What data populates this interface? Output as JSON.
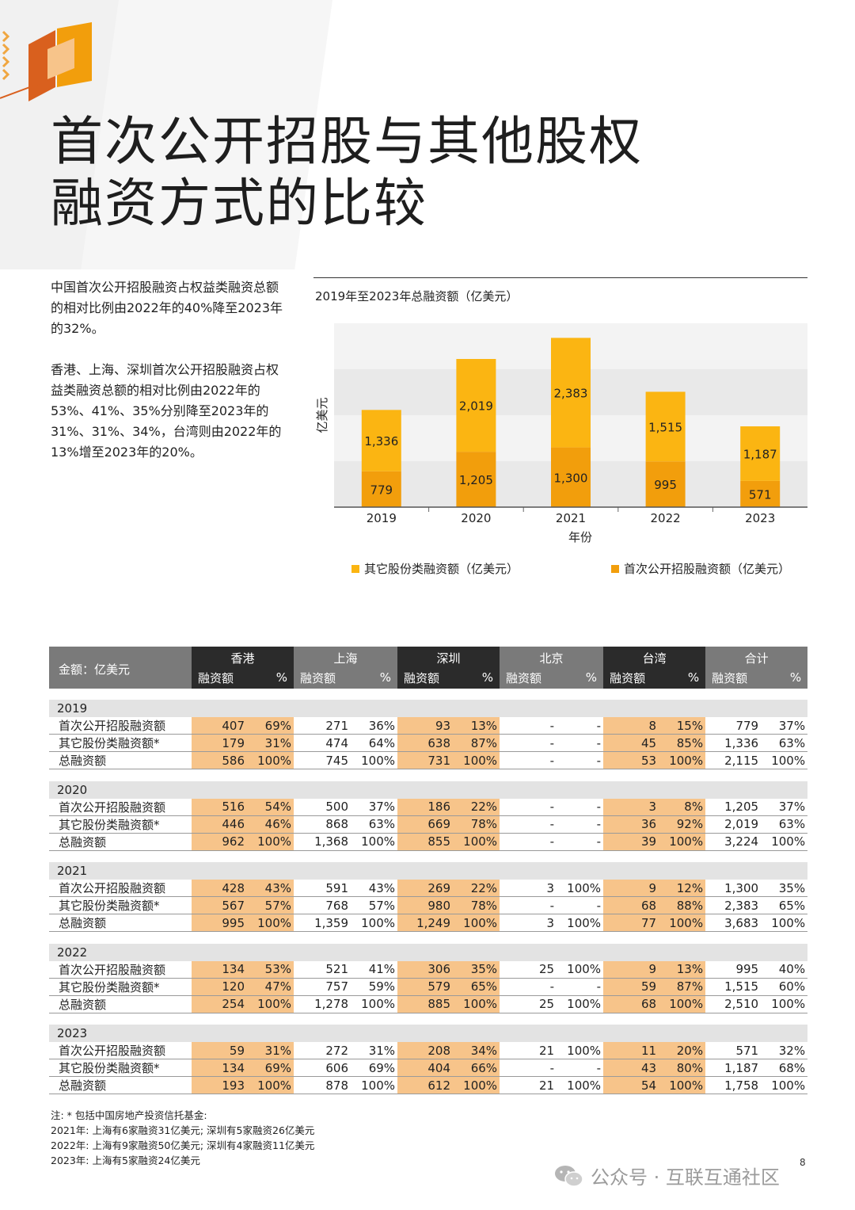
{
  "title_lines": [
    "首次公开招股与其他股权",
    "融资方式的比较"
  ],
  "intro": {
    "p1": "中国首次公开招股融资占权益类融资总额的相对比例由2022年的40%降至2023年的32%。",
    "p2": "香港、上海、深圳首次公开招股融资占权益类融资总额的相对比例由2022年的53%、41%、35%分别降至2023年的31%、31%、34%，台湾则由2022年的13%增至2023年的20%。"
  },
  "chart_data": {
    "type": "bar",
    "stacked": true,
    "title": "2019年至2023年总融资额（亿美元）",
    "xlabel": "年份",
    "ylabel": "亿美元",
    "categories": [
      "2019",
      "2020",
      "2021",
      "2022",
      "2023"
    ],
    "series": [
      {
        "name": "首次公开招股融资额（亿美元）",
        "values": [
          779,
          1205,
          1300,
          995,
          571
        ],
        "labels": [
          "779",
          "1,205",
          "1,300",
          "995",
          "571"
        ],
        "color": "#f29e0c"
      },
      {
        "name": "其它股份类融资额（亿美元）",
        "values": [
          1336,
          2019,
          2383,
          1515,
          1187
        ],
        "labels": [
          "1,336",
          "2,019",
          "2,383",
          "1,515",
          "1,187"
        ],
        "color": "#fbb512"
      }
    ],
    "ylim": [
      0,
      4000
    ],
    "grid": "bands",
    "legend_position": "bottom"
  },
  "table": {
    "corner_label": "金额：亿美元",
    "regions": [
      "香港",
      "上海",
      "深圳",
      "北京",
      "台湾",
      "合计"
    ],
    "sub_amount": "融资额",
    "sub_pct": "%",
    "row_labels": [
      "首次公开招股融资额",
      "其它股份类融资额*",
      "总融资额"
    ],
    "years": [
      {
        "year": "2019",
        "rows": [
          [
            "407",
            "69%",
            "271",
            "36%",
            "93",
            "13%",
            "-",
            "-",
            "8",
            "15%",
            "779",
            "37%"
          ],
          [
            "179",
            "31%",
            "474",
            "64%",
            "638",
            "87%",
            "-",
            "-",
            "45",
            "85%",
            "1,336",
            "63%"
          ],
          [
            "586",
            "100%",
            "745",
            "100%",
            "731",
            "100%",
            "-",
            "-",
            "53",
            "100%",
            "2,115",
            "100%"
          ]
        ]
      },
      {
        "year": "2020",
        "rows": [
          [
            "516",
            "54%",
            "500",
            "37%",
            "186",
            "22%",
            "-",
            "-",
            "3",
            "8%",
            "1,205",
            "37%"
          ],
          [
            "446",
            "46%",
            "868",
            "63%",
            "669",
            "78%",
            "-",
            "-",
            "36",
            "92%",
            "2,019",
            "63%"
          ],
          [
            "962",
            "100%",
            "1,368",
            "100%",
            "855",
            "100%",
            "-",
            "-",
            "39",
            "100%",
            "3,224",
            "100%"
          ]
        ]
      },
      {
        "year": "2021",
        "rows": [
          [
            "428",
            "43%",
            "591",
            "43%",
            "269",
            "22%",
            "3",
            "100%",
            "9",
            "12%",
            "1,300",
            "35%"
          ],
          [
            "567",
            "57%",
            "768",
            "57%",
            "980",
            "78%",
            "-",
            "-",
            "68",
            "88%",
            "2,383",
            "65%"
          ],
          [
            "995",
            "100%",
            "1,359",
            "100%",
            "1,249",
            "100%",
            "3",
            "100%",
            "77",
            "100%",
            "3,683",
            "100%"
          ]
        ]
      },
      {
        "year": "2022",
        "rows": [
          [
            "134",
            "53%",
            "521",
            "41%",
            "306",
            "35%",
            "25",
            "100%",
            "9",
            "13%",
            "995",
            "40%"
          ],
          [
            "120",
            "47%",
            "757",
            "59%",
            "579",
            "65%",
            "-",
            "-",
            "59",
            "87%",
            "1,515",
            "60%"
          ],
          [
            "254",
            "100%",
            "1,278",
            "100%",
            "885",
            "100%",
            "25",
            "100%",
            "68",
            "100%",
            "2,510",
            "100%"
          ]
        ]
      },
      {
        "year": "2023",
        "rows": [
          [
            "59",
            "31%",
            "272",
            "31%",
            "208",
            "34%",
            "21",
            "100%",
            "11",
            "20%",
            "571",
            "32%"
          ],
          [
            "134",
            "69%",
            "606",
            "69%",
            "404",
            "66%",
            "-",
            "-",
            "43",
            "80%",
            "1,187",
            "68%"
          ],
          [
            "193",
            "100%",
            "878",
            "100%",
            "612",
            "100%",
            "21",
            "100%",
            "54",
            "100%",
            "1,758",
            "100%"
          ]
        ]
      }
    ]
  },
  "notes": [
    "注: * 包括中国房地产投资信托基金:",
    "2021年: 上海有6家融资31亿美元; 深圳有5家融资26亿美元",
    "2022年: 上海有9家融资50亿美元; 深圳有4家融资11亿美元",
    "2023年: 上海有5家融资24亿美元"
  ],
  "page_number": "8",
  "watermark": "公众号 · 互联互通社区",
  "colors": {
    "ipo": "#f29e0c",
    "other": "#fbb512",
    "highlight": "#f7c48a",
    "header_dark": "#2b2b2b",
    "header_grey": "#7a7a7a",
    "year_band": "#e3e3e3"
  }
}
